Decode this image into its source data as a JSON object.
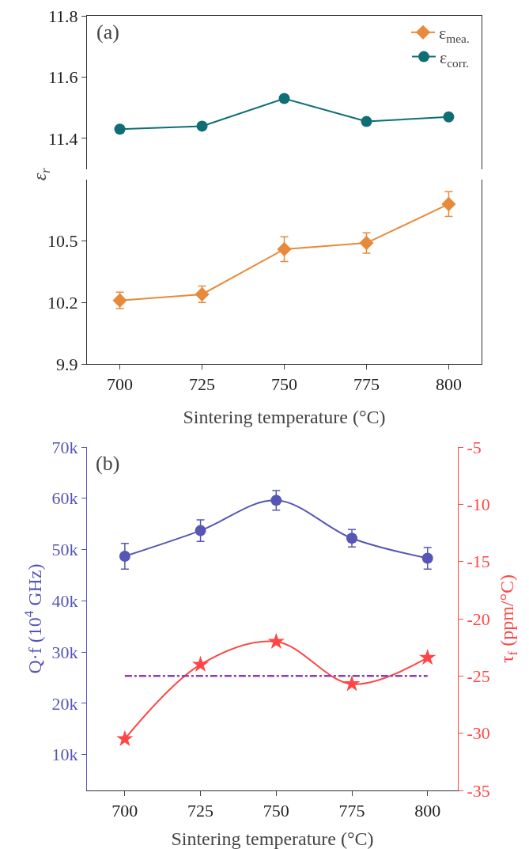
{
  "chart_data": [
    {
      "type": "line",
      "annotations": [
        "(a)"
      ],
      "x": [
        700,
        725,
        750,
        775,
        800
      ],
      "xlim": [
        690,
        810
      ],
      "xticks": [
        700,
        725,
        750,
        775,
        800
      ],
      "tick_labels": "y",
      "ylim": [
        11.3,
        11.8
      ],
      "yticks": [
        11.4,
        11.6,
        11.8
      ],
      "legend": "top right",
      "series": [
        {
          "name": "ε$_{corr.}$",
          "color": "#0f6e74",
          "marker": "circle",
          "values": [
            11.43,
            11.44,
            11.53,
            11.455,
            11.47
          ]
        }
      ]
    },
    {
      "type": "line",
      "xlabel": "Sintering temperature (°C)",
      "ylabel": "ε$_{r}$",
      "x": [
        700,
        725,
        750,
        775,
        800
      ],
      "xlim": [
        690,
        810
      ],
      "xticks": [
        700,
        725,
        750,
        775,
        800
      ],
      "ylim": [
        9.9,
        10.8
      ],
      "yticks": [
        9.9,
        10.2,
        10.5
      ],
      "legend": "top right",
      "series": [
        {
          "name": "ε$_{mea.}$",
          "color": "#e88a3c",
          "marker": "diamond",
          "values": [
            10.21,
            10.24,
            10.46,
            10.49,
            10.68
          ],
          "errors": [
            0.04,
            0.04,
            0.06,
            0.05,
            0.06
          ]
        }
      ]
    },
    {
      "type": "line",
      "xlabel": "Sintering temperature (°C)",
      "ylabel": "Q·f (10$^{4}$ GHz)",
      "y2label": "τ$_{f}$ (ppm/°C)",
      "annotations": [
        "(b)"
      ],
      "x": [
        700,
        725,
        750,
        775,
        800
      ],
      "xlim": [
        687.5,
        810
      ],
      "xticks": [
        700,
        725,
        750,
        775,
        800
      ],
      "ylim": [
        3000,
        70000
      ],
      "yticks": [
        {
          "value": 10000,
          "label": "10k"
        },
        {
          "value": 20000,
          "label": "20k"
        },
        {
          "value": 30000,
          "label": "30k"
        },
        {
          "value": 40000,
          "label": "40k"
        },
        {
          "value": 50000,
          "label": "50k"
        },
        {
          "value": 60000,
          "label": "60k"
        },
        {
          "value": 70000,
          "label": "70k"
        }
      ],
      "y2lim": [
        -35,
        -5
      ],
      "y2ticks": [
        -35,
        -30,
        -25,
        -20,
        -15,
        -10,
        -5
      ],
      "ref_lines": [
        {
          "axis": "y2",
          "value": -25,
          "color": "#8a3fb0",
          "line_style": "dashdot"
        }
      ],
      "series": [
        {
          "color": "#5656b4",
          "marker": "circle",
          "values": [
            48700,
            53700,
            59600,
            52200,
            48300
          ],
          "errors": [
            2500,
            2100,
            1900,
            1700,
            2100
          ]
        },
        {
          "color": "#ff4646",
          "marker": "star",
          "axis": "y2",
          "values": [
            -30.5,
            -24.0,
            -22.0,
            -25.7,
            -23.4
          ]
        }
      ]
    }
  ]
}
